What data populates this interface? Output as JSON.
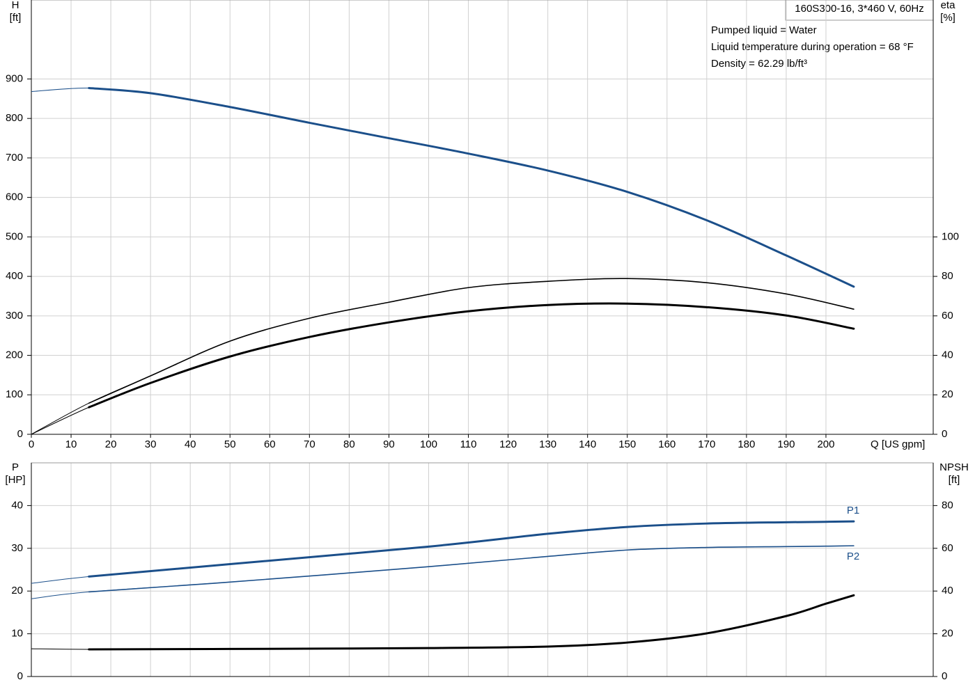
{
  "chart_data": [
    {
      "type": "line",
      "title": "160S300-16, 3*460 V, 60Hz",
      "annotations": [
        "Pumped liquid = Water",
        "Liquid temperature during operation = 68 °F",
        "Density = 62.29 lb/ft³"
      ],
      "ylabel": "H",
      "yunit": "[ft]",
      "y2label": "eta",
      "y2unit": "[%]",
      "xlabel": "Q [US gpm]",
      "x": [
        0,
        14.5,
        30,
        50,
        70,
        90,
        110,
        130,
        150,
        170,
        190,
        207
      ],
      "xlim": [
        0,
        227
      ],
      "xticks": [
        0,
        10,
        20,
        30,
        40,
        50,
        60,
        70,
        80,
        90,
        100,
        110,
        120,
        130,
        140,
        150,
        160,
        170,
        180,
        190,
        200
      ],
      "ylim": [
        0,
        1100
      ],
      "yticks": [
        0,
        100,
        200,
        300,
        400,
        500,
        600,
        700,
        800,
        900
      ],
      "y2lim": [
        0,
        220
      ],
      "y2ticks": [
        0,
        20,
        40,
        60,
        80,
        100
      ],
      "grid": true,
      "series": [
        {
          "color": "#1b4f8a",
          "line_width": 3,
          "values": [
            868,
            877,
            864,
            829,
            789,
            750,
            711,
            668,
            614,
            542,
            453,
            374
          ]
        },
        {
          "color": "#000000",
          "line_width": 1.6,
          "axis": "y2",
          "values": [
            0,
            15.8,
            29.6,
            47.2,
            58.8,
            66.9,
            74.3,
            77.5,
            78.9,
            76.8,
            71.1,
            63.4
          ]
        },
        {
          "color": "#000000",
          "line_width": 3,
          "axis": "y2",
          "values": [
            0,
            13.7,
            26,
            39.4,
            49.3,
            56.7,
            62.3,
            65.5,
            66.2,
            64.4,
            60.2,
            53.5
          ]
        }
      ]
    },
    {
      "type": "line",
      "ylabel": "P",
      "yunit": "[HP]",
      "y2label": "NPSH",
      "y2unit": "[ft]",
      "x": [
        0,
        14.5,
        50,
        100,
        130,
        150,
        170,
        190,
        200,
        207
      ],
      "xlim": [
        0,
        227
      ],
      "ylim": [
        0,
        50
      ],
      "yticks": [
        0,
        10,
        20,
        30,
        40
      ],
      "y2lim": [
        0,
        100
      ],
      "y2ticks": [
        0,
        20,
        40,
        60,
        80
      ],
      "grid": true,
      "series": [
        {
          "name": "P1",
          "color": "#1b4f8a",
          "line_width": 3,
          "values": [
            21.8,
            23.4,
            26.3,
            30.4,
            33.4,
            35,
            35.8,
            36.1,
            36.2,
            36.3
          ]
        },
        {
          "name": "P2",
          "color": "#1b4f8a",
          "line_width": 1.6,
          "values": [
            18.2,
            19.8,
            22.1,
            25.7,
            28.1,
            29.6,
            30.2,
            30.4,
            30.5,
            30.6
          ]
        },
        {
          "color": "#000000",
          "line_width": 3,
          "axis": "y2",
          "values": [
            13,
            12.7,
            12.9,
            13.3,
            14,
            15.9,
            20.2,
            28.3,
            34.1,
            38
          ]
        }
      ]
    }
  ]
}
